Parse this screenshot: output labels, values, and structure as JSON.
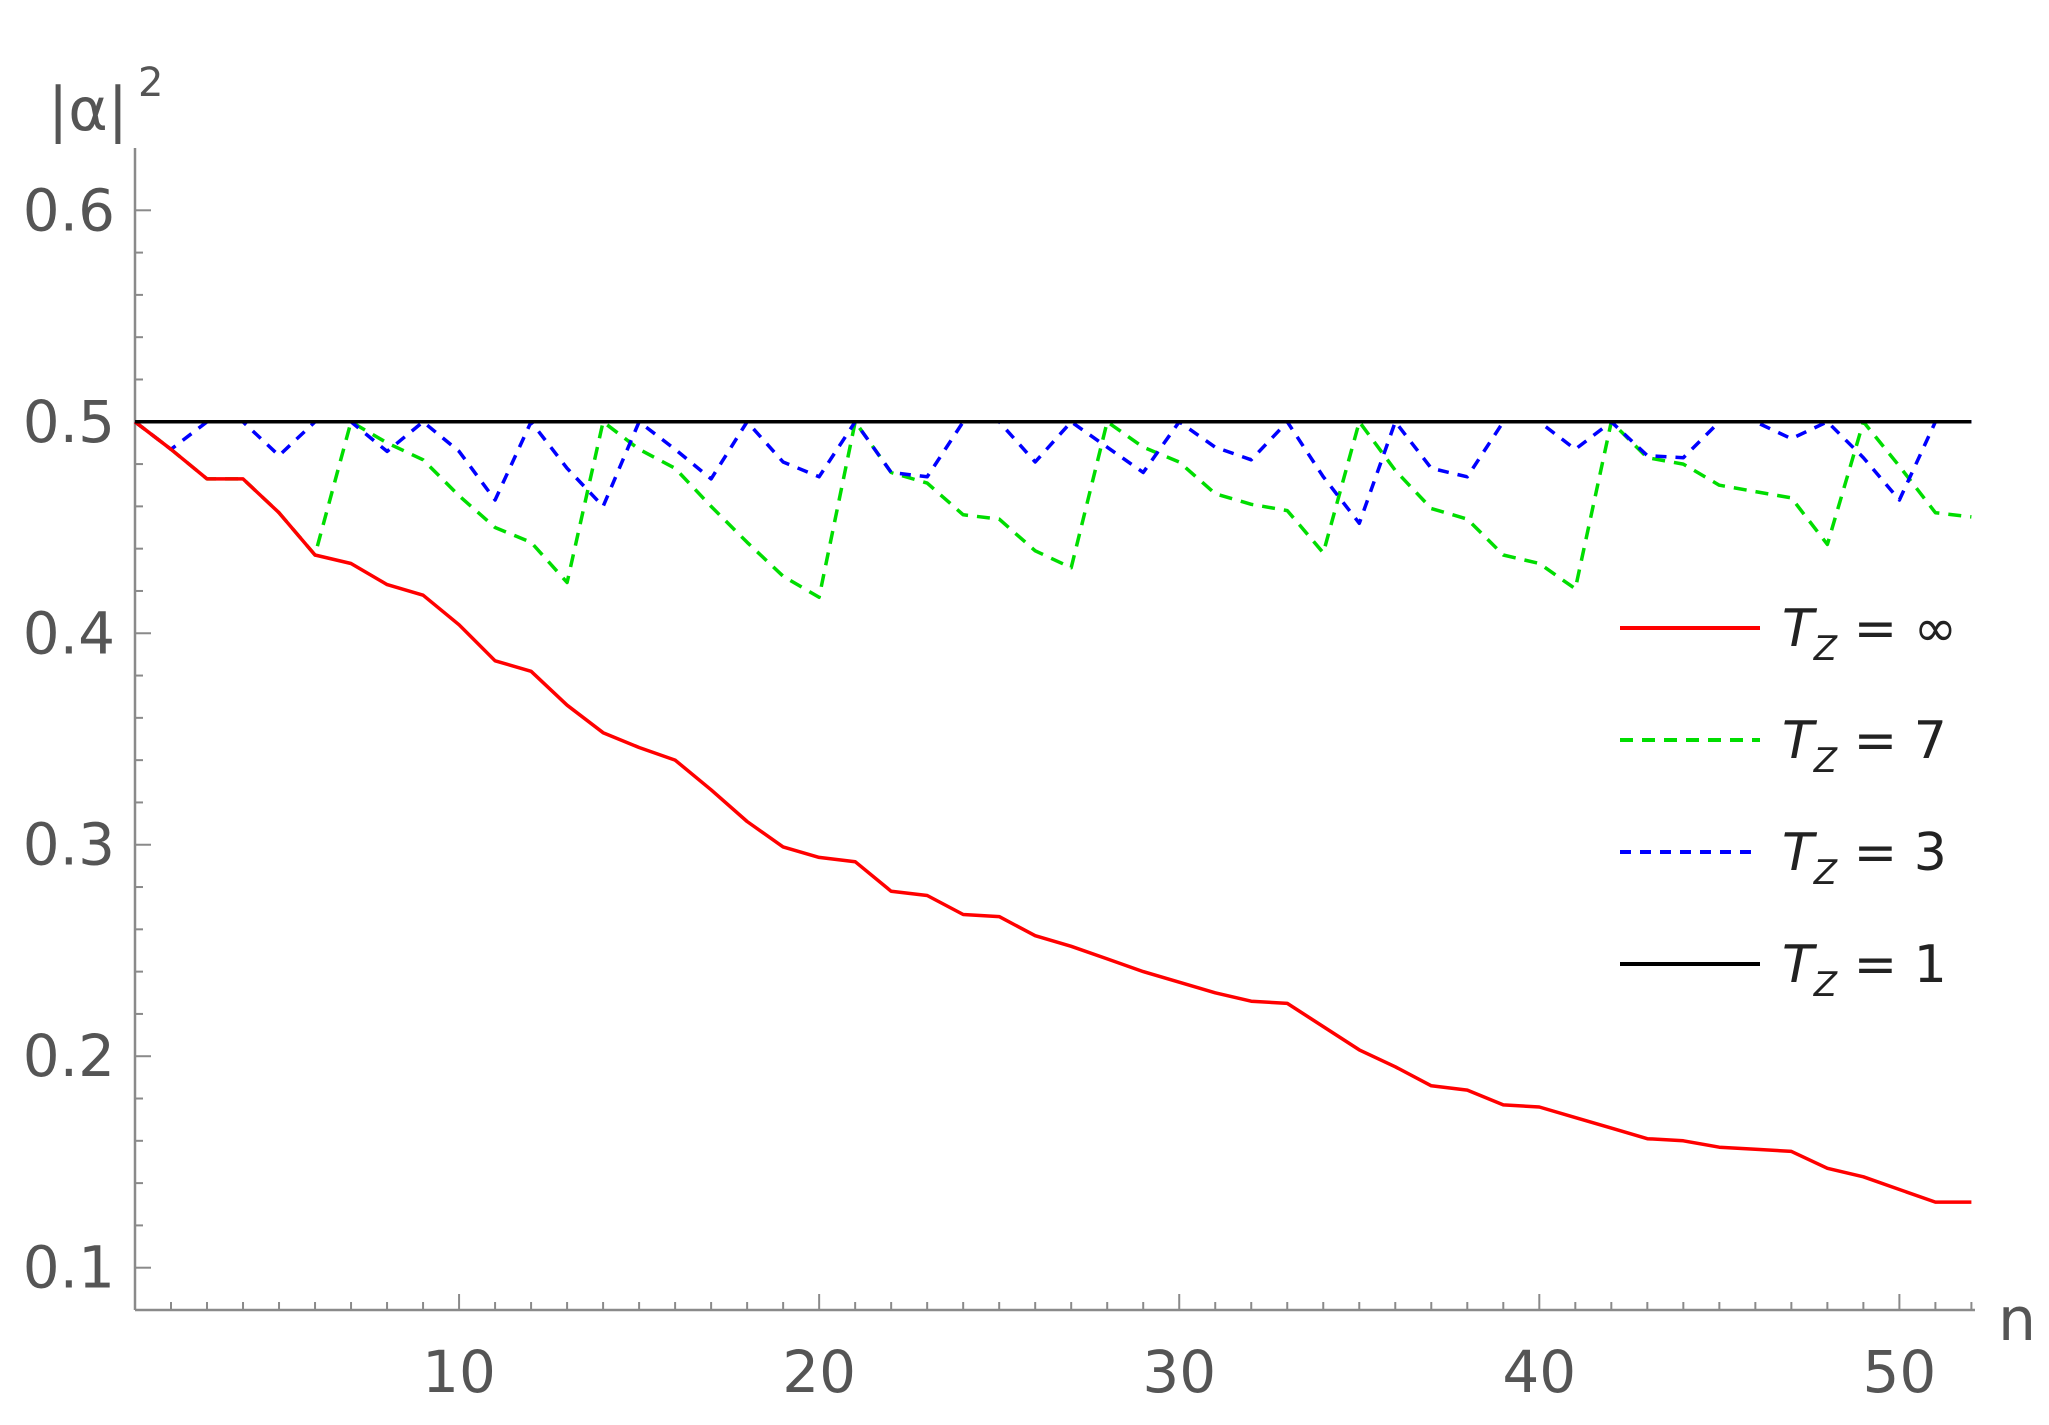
{
  "chart_data": {
    "type": "line",
    "title": "",
    "xlabel": "n",
    "ylabel": "|α|²",
    "xlim": [
      1,
      52
    ],
    "ylim": [
      0.08,
      0.62
    ],
    "xticks": [
      10,
      20,
      30,
      40,
      50
    ],
    "xtick_labels": [
      "10",
      "20",
      "30",
      "40",
      "50"
    ],
    "yticks": [
      0.1,
      0.2,
      0.3,
      0.4,
      0.5,
      0.6
    ],
    "ytick_labels": [
      "0.1",
      "0.2",
      "0.3",
      "0.4",
      "0.5",
      "0.6"
    ],
    "grid": false,
    "legend_position": "right",
    "x": [
      1,
      2,
      3,
      4,
      5,
      6,
      7,
      8,
      9,
      10,
      11,
      12,
      13,
      14,
      15,
      16,
      17,
      18,
      19,
      20,
      21,
      22,
      23,
      24,
      25,
      26,
      27,
      28,
      29,
      30,
      31,
      32,
      33,
      34,
      35,
      36,
      37,
      38,
      39,
      40,
      41,
      42,
      43,
      44,
      45,
      46,
      47,
      48,
      49,
      50,
      51,
      52
    ],
    "series": [
      {
        "name": "T_Z = ∞",
        "color": "#ff0000",
        "dash": "solid",
        "values": [
          0.5,
          0.487,
          0.473,
          0.473,
          0.457,
          0.437,
          0.433,
          0.423,
          0.418,
          0.404,
          0.387,
          0.382,
          0.366,
          0.353,
          0.346,
          0.34,
          0.326,
          0.311,
          0.299,
          0.294,
          0.292,
          0.278,
          0.276,
          0.267,
          0.266,
          0.257,
          0.252,
          0.246,
          0.24,
          0.235,
          0.23,
          0.226,
          0.225,
          0.214,
          0.203,
          0.195,
          0.186,
          0.184,
          0.177,
          0.176,
          0.171,
          0.166,
          0.161,
          0.16,
          0.157,
          0.156,
          0.155,
          0.147,
          0.143,
          0.137,
          0.131,
          0.131
        ]
      },
      {
        "name": "T_Z = 7",
        "color": "#00dd00",
        "dash": "dashed",
        "values": [
          0.5,
          0.487,
          0.473,
          0.473,
          0.457,
          0.437,
          0.5,
          0.49,
          0.482,
          0.465,
          0.45,
          0.443,
          0.424,
          0.5,
          0.487,
          0.478,
          0.46,
          0.443,
          0.427,
          0.417,
          0.5,
          0.476,
          0.471,
          0.456,
          0.454,
          0.439,
          0.431,
          0.5,
          0.488,
          0.481,
          0.466,
          0.461,
          0.458,
          0.438,
          0.5,
          0.477,
          0.459,
          0.454,
          0.437,
          0.433,
          0.421,
          0.5,
          0.483,
          0.48,
          0.47,
          0.467,
          0.464,
          0.442,
          0.5,
          0.479,
          0.457,
          0.455
        ]
      },
      {
        "name": "T_Z = 3",
        "color": "#0000ff",
        "dash": "dotted",
        "values": [
          0.5,
          0.487,
          0.5,
          0.5,
          0.484,
          0.5,
          0.5,
          0.486,
          0.5,
          0.486,
          0.463,
          0.5,
          0.478,
          0.46,
          0.5,
          0.487,
          0.473,
          0.5,
          0.481,
          0.474,
          0.5,
          0.476,
          0.474,
          0.5,
          0.5,
          0.481,
          0.5,
          0.488,
          0.476,
          0.5,
          0.488,
          0.482,
          0.5,
          0.474,
          0.452,
          0.5,
          0.478,
          0.474,
          0.5,
          0.5,
          0.487,
          0.5,
          0.484,
          0.483,
          0.5,
          0.5,
          0.492,
          0.5,
          0.483,
          0.463,
          0.5,
          0.5
        ]
      },
      {
        "name": "T_Z = 1",
        "color": "#000000",
        "dash": "solid",
        "values": [
          0.5,
          0.5,
          0.5,
          0.5,
          0.5,
          0.5,
          0.5,
          0.5,
          0.5,
          0.5,
          0.5,
          0.5,
          0.5,
          0.5,
          0.5,
          0.5,
          0.5,
          0.5,
          0.5,
          0.5,
          0.5,
          0.5,
          0.5,
          0.5,
          0.5,
          0.5,
          0.5,
          0.5,
          0.5,
          0.5,
          0.5,
          0.5,
          0.5,
          0.5,
          0.5,
          0.5,
          0.5,
          0.5,
          0.5,
          0.5,
          0.5,
          0.5,
          0.5,
          0.5,
          0.5,
          0.5,
          0.5,
          0.5,
          0.5,
          0.5,
          0.5,
          0.5
        ]
      }
    ],
    "legend": [
      {
        "T": "T",
        "sub": "Z",
        "rest": " = ∞"
      },
      {
        "T": "T",
        "sub": "Z",
        "rest": " = 7"
      },
      {
        "T": "T",
        "sub": "Z",
        "rest": " = 3"
      },
      {
        "T": "T",
        "sub": "Z",
        "rest": " = 1"
      }
    ]
  }
}
